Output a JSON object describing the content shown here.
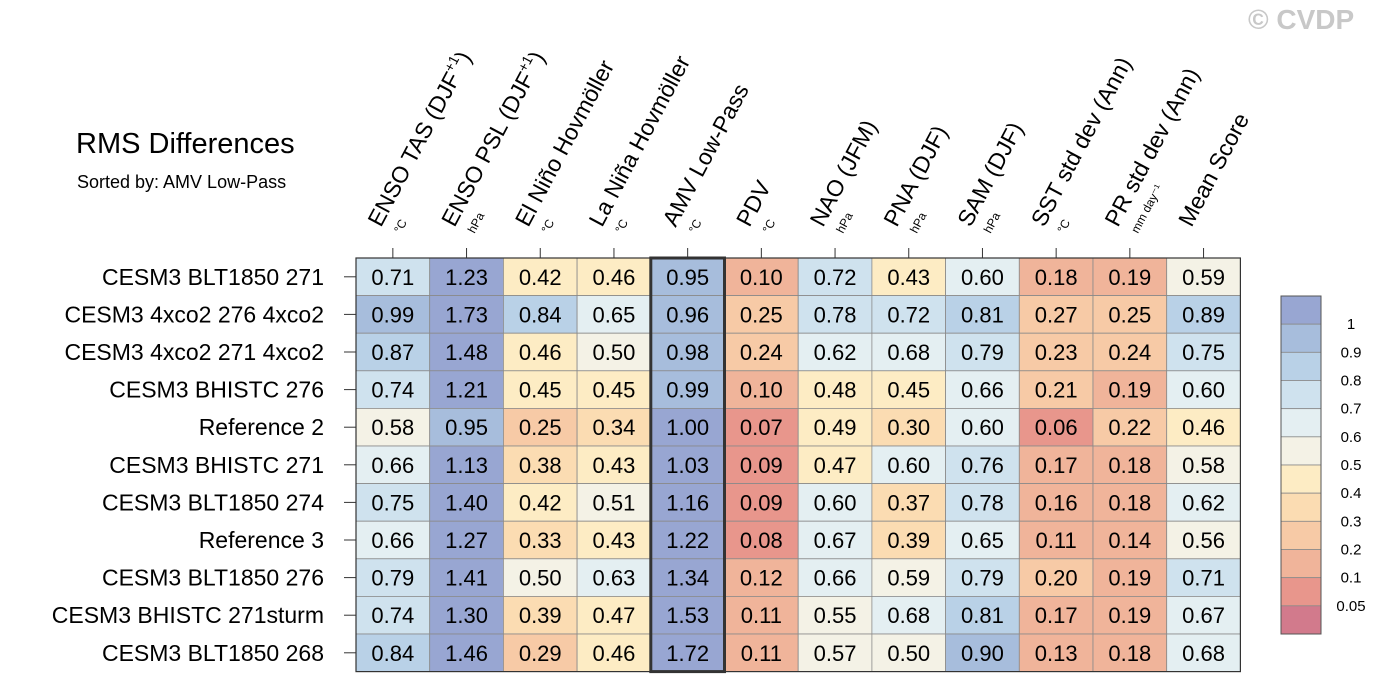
{
  "watermark": "© CVDP",
  "chart_data": {
    "type": "heatmap",
    "title": "RMS Differences",
    "subtitle": "Sorted by: AMV Low-Pass",
    "columns": [
      {
        "label": "ENSO TAS (DJF",
        "sup": "+1",
        "tail": ")",
        "unit": "°C"
      },
      {
        "label": "ENSO PSL (DJF",
        "sup": "+1",
        "tail": ")",
        "unit": "hPa"
      },
      {
        "label": "El Niño Hovmöller",
        "sup": "",
        "tail": "",
        "unit": "°C"
      },
      {
        "label": "La Niña Hovmöller",
        "sup": "",
        "tail": "",
        "unit": "°C"
      },
      {
        "label": "AMV Low-Pass",
        "sup": "",
        "tail": "",
        "unit": "°C"
      },
      {
        "label": "PDV",
        "sup": "",
        "tail": "",
        "unit": "°C"
      },
      {
        "label": "NAO (JFM)",
        "sup": "",
        "tail": "",
        "unit": "hPa"
      },
      {
        "label": "PNA (DJF)",
        "sup": "",
        "tail": "",
        "unit": "hPa"
      },
      {
        "label": "SAM (DJF)",
        "sup": "",
        "tail": "",
        "unit": "hPa"
      },
      {
        "label": "SST std dev (Ann)",
        "sup": "",
        "tail": "",
        "unit": "°C"
      },
      {
        "label": "PR std dev (Ann)",
        "sup": "",
        "tail": "",
        "unit": "mm day⁻¹"
      },
      {
        "label": "Mean Score",
        "sup": "",
        "tail": "",
        "unit": ""
      }
    ],
    "highlighted_column": "AMV Low-Pass",
    "rows": [
      "CESM3 BLT1850 271",
      "CESM3 4xco2 276 4xco2",
      "CESM3 4xco2 271 4xco2",
      "CESM3 BHISTC 276",
      "Reference 2",
      "CESM3 BHISTC 271",
      "CESM3 BLT1850 274",
      "Reference 3",
      "CESM3 BLT1850 276",
      "CESM3 BHISTC 271sturm",
      "CESM3 BLT1850 268"
    ],
    "values": [
      [
        "0.71",
        "1.23",
        "0.42",
        "0.46",
        "0.95",
        "0.10",
        "0.72",
        "0.43",
        "0.60",
        "0.18",
        "0.19",
        "0.59"
      ],
      [
        "0.99",
        "1.73",
        "0.84",
        "0.65",
        "0.96",
        "0.25",
        "0.78",
        "0.72",
        "0.81",
        "0.27",
        "0.25",
        "0.89"
      ],
      [
        "0.87",
        "1.48",
        "0.46",
        "0.50",
        "0.98",
        "0.24",
        "0.62",
        "0.68",
        "0.79",
        "0.23",
        "0.24",
        "0.75"
      ],
      [
        "0.74",
        "1.21",
        "0.45",
        "0.45",
        "0.99",
        "0.10",
        "0.48",
        "0.45",
        "0.66",
        "0.21",
        "0.19",
        "0.60"
      ],
      [
        "0.58",
        "0.95",
        "0.25",
        "0.34",
        "1.00",
        "0.07",
        "0.49",
        "0.30",
        "0.60",
        "0.06",
        "0.22",
        "0.46"
      ],
      [
        "0.66",
        "1.13",
        "0.38",
        "0.43",
        "1.03",
        "0.09",
        "0.47",
        "0.60",
        "0.76",
        "0.17",
        "0.18",
        "0.58"
      ],
      [
        "0.75",
        "1.40",
        "0.42",
        "0.51",
        "1.16",
        "0.09",
        "0.60",
        "0.37",
        "0.78",
        "0.16",
        "0.18",
        "0.62"
      ],
      [
        "0.66",
        "1.27",
        "0.33",
        "0.43",
        "1.22",
        "0.08",
        "0.67",
        "0.39",
        "0.65",
        "0.11",
        "0.14",
        "0.56"
      ],
      [
        "0.79",
        "1.41",
        "0.50",
        "0.63",
        "1.34",
        "0.12",
        "0.66",
        "0.59",
        "0.79",
        "0.20",
        "0.19",
        "0.71"
      ],
      [
        "0.74",
        "1.30",
        "0.39",
        "0.47",
        "1.53",
        "0.11",
        "0.55",
        "0.68",
        "0.81",
        "0.17",
        "0.19",
        "0.67"
      ],
      [
        "0.84",
        "1.46",
        "0.29",
        "0.46",
        "1.72",
        "0.11",
        "0.57",
        "0.50",
        "0.90",
        "0.13",
        "0.18",
        "0.68"
      ]
    ],
    "colorbar": {
      "labels": [
        "1",
        "0.9",
        "0.8",
        "0.7",
        "0.6",
        "0.5",
        "0.4",
        "0.3",
        "0.2",
        "0.1",
        "0.05"
      ],
      "levels": [
        0.05,
        0.1,
        0.2,
        0.3,
        0.4,
        0.5,
        0.6,
        0.7,
        0.8,
        0.9,
        1.0
      ],
      "colors": [
        "#d27a8c",
        "#e8968c",
        "#f0b49a",
        "#f7caa6",
        "#fbdcb2",
        "#fdecc4",
        "#f4f2e6",
        "#e4eff2",
        "#cfe2ee",
        "#b9d1e7",
        "#a7bddc",
        "#98a6d2"
      ]
    }
  }
}
